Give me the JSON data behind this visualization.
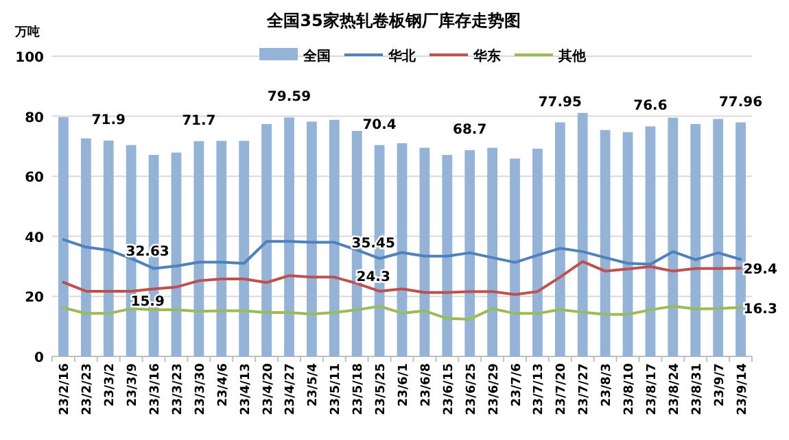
{
  "chart_data": {
    "type": "bar",
    "title": "全国35家热轧卷板钢厂库存走势图",
    "ylabel": "万吨",
    "categories": [
      "23/2/16",
      "23/2/23",
      "23/3/2",
      "23/3/9",
      "23/3/16",
      "23/3/23",
      "23/3/30",
      "23/4/6",
      "23/4/13",
      "23/4/20",
      "23/4/27",
      "23/5/4",
      "23/5/11",
      "23/5/18",
      "23/5/25",
      "23/6/1",
      "23/6/8",
      "23/6/15",
      "23/6/25",
      "23/6/29",
      "23/7/6",
      "23/7/13",
      "23/7/20",
      "23/7/27",
      "23/8/3",
      "23/8/10",
      "23/8/17",
      "23/8/24",
      "23/8/31",
      "23/9/7",
      "23/9/14"
    ],
    "ylim": [
      0,
      100
    ],
    "yticks": [
      0,
      20,
      40,
      60,
      80,
      100
    ],
    "grid": "y",
    "legend": "top",
    "series": [
      {
        "name": "全国",
        "color": "#95b3d7",
        "values": [
          79.7,
          72.6,
          71.9,
          70.4,
          67.1,
          67.9,
          71.7,
          71.8,
          71.8,
          77.4,
          79.59,
          78.2,
          78.8,
          75.1,
          70.4,
          71.0,
          69.5,
          67.1,
          68.7,
          69.5,
          65.9,
          69.2,
          77.95,
          81.1,
          75.4,
          74.7,
          76.6,
          79.5,
          77.4,
          79.1,
          77.96
        ],
        "value_labels": [
          null,
          null,
          "71.9",
          null,
          null,
          null,
          "71.7",
          null,
          null,
          null,
          "79.59",
          null,
          null,
          null,
          "70.4",
          null,
          null,
          null,
          "68.7",
          null,
          null,
          null,
          "77.95",
          null,
          null,
          null,
          "76.6",
          null,
          null,
          null,
          "77.96"
        ]
      },
      {
        "name": "华北",
        "type": "line",
        "color": "#4f81bd",
        "values": [
          38.9,
          36.4,
          35.4,
          32.63,
          29.3,
          30.1,
          31.4,
          31.4,
          31.0,
          38.3,
          38.3,
          38.0,
          38.0,
          35.45,
          32.6,
          34.6,
          33.4,
          33.4,
          34.5,
          32.9,
          31.3,
          33.7,
          36.0,
          34.9,
          32.9,
          31.0,
          30.7,
          34.9,
          32.2,
          34.5,
          32.3
        ],
        "value_labels": [
          null,
          null,
          null,
          "32.63",
          null,
          null,
          null,
          null,
          null,
          null,
          null,
          null,
          null,
          "35.45",
          null,
          null,
          null,
          null,
          null,
          null,
          null,
          null,
          null,
          null,
          null,
          null,
          null,
          null,
          null,
          null,
          null
        ]
      },
      {
        "name": "华东",
        "type": "line",
        "color": "#c0504d",
        "values": [
          24.7,
          21.7,
          21.7,
          21.7,
          22.5,
          23.1,
          25.2,
          25.8,
          25.8,
          24.6,
          26.9,
          26.4,
          26.4,
          24.3,
          21.7,
          22.5,
          21.3,
          21.3,
          21.6,
          21.6,
          20.6,
          21.6,
          26.4,
          31.6,
          28.4,
          29.1,
          29.9,
          28.4,
          29.3,
          29.3,
          29.4
        ],
        "value_labels": [
          null,
          null,
          null,
          null,
          null,
          null,
          null,
          null,
          null,
          null,
          null,
          null,
          null,
          "24.3",
          null,
          null,
          null,
          null,
          null,
          null,
          null,
          null,
          null,
          null,
          null,
          null,
          null,
          null,
          null,
          null,
          "29.4"
        ]
      },
      {
        "name": "其他",
        "type": "line",
        "color": "#9bbb59",
        "values": [
          16.2,
          14.3,
          14.3,
          15.9,
          15.5,
          15.5,
          15.0,
          15.2,
          15.2,
          14.6,
          14.6,
          14.1,
          14.6,
          15.5,
          16.7,
          14.4,
          15.2,
          12.6,
          12.4,
          15.9,
          14.3,
          14.3,
          15.6,
          14.7,
          14.0,
          14.0,
          15.5,
          16.7,
          15.8,
          15.9,
          16.3
        ],
        "value_labels": [
          null,
          null,
          null,
          "15.9",
          null,
          null,
          null,
          null,
          null,
          null,
          null,
          null,
          null,
          null,
          null,
          null,
          null,
          null,
          null,
          null,
          null,
          null,
          null,
          null,
          null,
          null,
          null,
          null,
          null,
          null,
          "16.3"
        ]
      }
    ]
  }
}
